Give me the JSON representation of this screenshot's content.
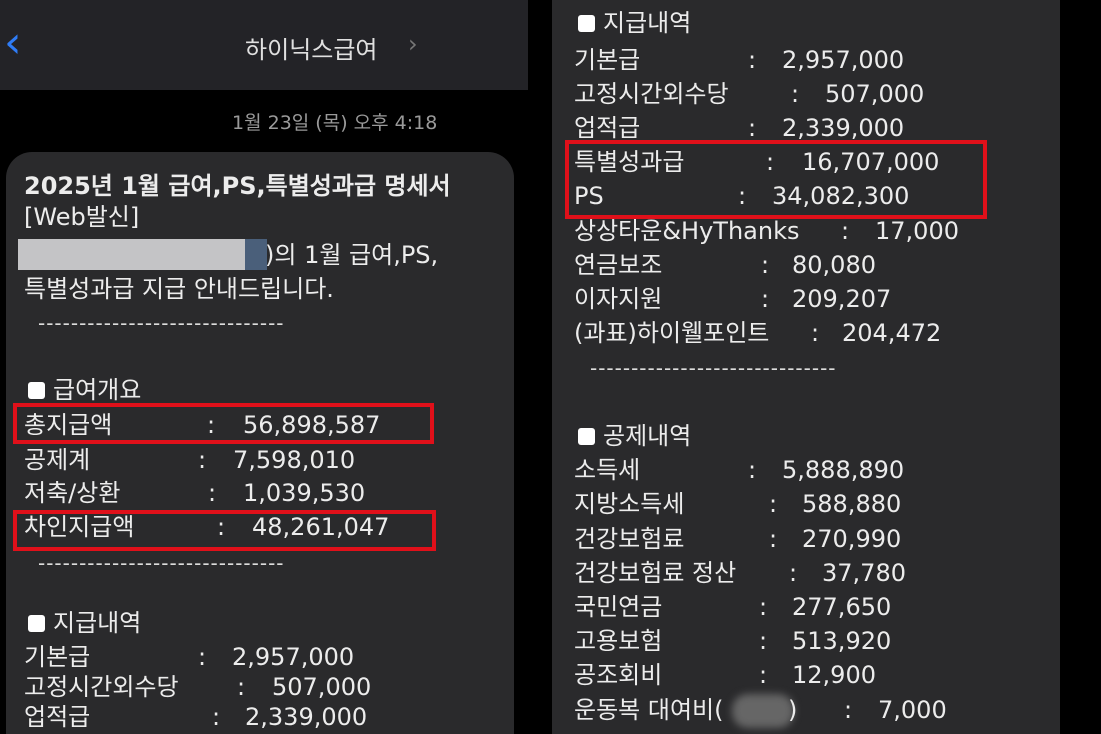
{
  "header": {
    "title": "하이닉스급여",
    "back_icon": "chevron-left-icon",
    "detail_icon": "chevron-right-icon"
  },
  "message": {
    "timestamp": "1월 23일 (목) 오후 4:18",
    "title": "2025년 1월 급여,PS,특별성과급 명세서",
    "tag": "[Web발신]",
    "intro_1": ")의 1월 급여,PS,",
    "intro_2": "특별성과급 지급 안내드립니다.",
    "divider": "------------------------------",
    "summary": {
      "heading": "급여개요",
      "rows": [
        {
          "label": "총지급액",
          "value": "56,898,587"
        },
        {
          "label": "공제계",
          "value": "7,598,010"
        },
        {
          "label": "저축/상환",
          "value": "1,039,530"
        },
        {
          "label": "차인지급액",
          "value": "48,261,047"
        }
      ]
    },
    "payments": {
      "heading": "지급내역",
      "rows": [
        {
          "label": "기본급",
          "value": "2,957,000"
        },
        {
          "label": "고정시간외수당",
          "value": "507,000"
        },
        {
          "label": "업적급",
          "value": "2,339,000"
        },
        {
          "label": "특별성과급",
          "value": "16,707,000"
        },
        {
          "label": "PS",
          "value": "34,082,300"
        },
        {
          "label": "상상타운&HyThanks",
          "value": "17,000"
        },
        {
          "label": "연금보조",
          "value": "80,080"
        },
        {
          "label": "이자지원",
          "value": "209,207"
        },
        {
          "label": "(과표)하이웰포인트",
          "value": "204,472"
        }
      ]
    },
    "deductions": {
      "heading": "공제내역",
      "rows": [
        {
          "label": "소득세",
          "value": "5,888,890"
        },
        {
          "label": "지방소득세",
          "value": "588,880"
        },
        {
          "label": "건강보험료",
          "value": "270,990"
        },
        {
          "label": "건강보험료 정산",
          "value": "37,780"
        },
        {
          "label": "국민연금",
          "value": "277,650"
        },
        {
          "label": "고용보험",
          "value": "513,920"
        },
        {
          "label": "공조회비",
          "value": "12,900"
        },
        {
          "label": "운동복 대여비(",
          "value": "7,000",
          "suffix": ")"
        }
      ]
    },
    "colon": ":"
  },
  "colors": {
    "highlight": "#e0101a",
    "link": "#2f7cf6",
    "bubble": "#2a2a2c"
  }
}
